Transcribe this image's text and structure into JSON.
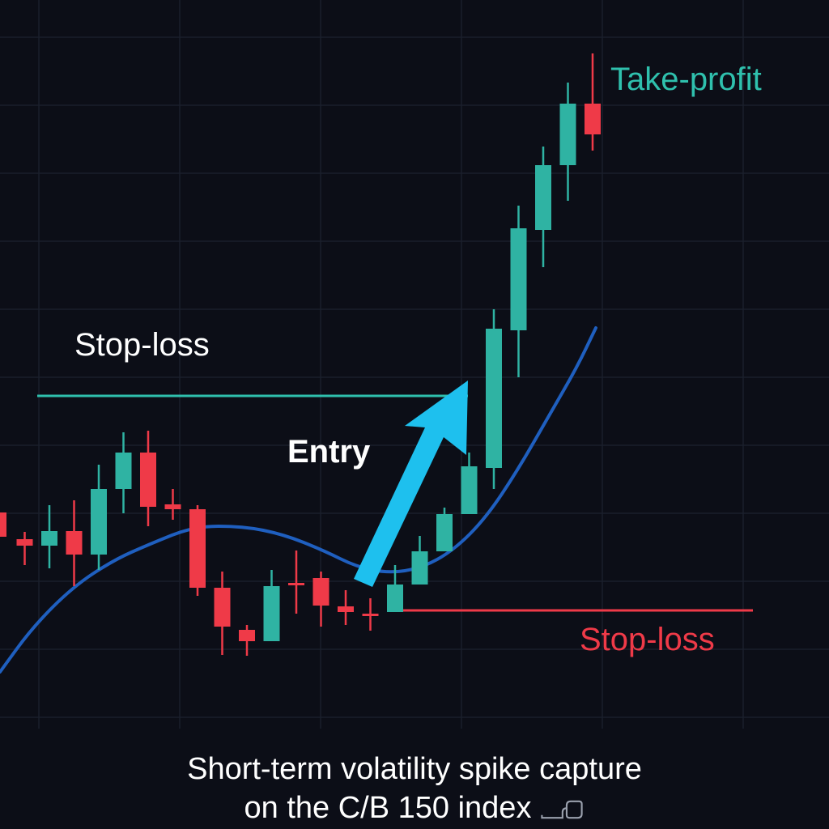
{
  "labels": {
    "take_profit": "Take-profit",
    "stop_loss_top": "Stop-loss",
    "entry": "Entry",
    "stop_loss_bottom": "Stop-loss"
  },
  "caption": {
    "line1": "Short-term volatility spike capture",
    "line2": "on the C/B 150 index"
  },
  "colors": {
    "background": "#0c0e17",
    "grid": "#1a1f2c",
    "up": "#2fb3a3",
    "down": "#ef3a48",
    "moving_average": "#1f5fbf",
    "arrow": "#1ec0ee",
    "take_profit_line": "#2fc0ad",
    "stop_loss_line": "#ef3a48",
    "text": "#ffffff"
  },
  "chart_data": {
    "type": "candlestick",
    "title": "",
    "xlabel": "",
    "ylabel": "",
    "grid": true,
    "ylim": [
      0,
      1024
    ],
    "candles": [
      {
        "open": 391,
        "close": 361,
        "high": 391,
        "low": 361
      },
      {
        "open": 358,
        "close": 350,
        "high": 367,
        "low": 326
      },
      {
        "open": 350,
        "close": 368,
        "high": 400,
        "low": 322
      },
      {
        "open": 368,
        "close": 339,
        "high": 406,
        "low": 300
      },
      {
        "open": 339,
        "close": 420,
        "high": 450,
        "low": 320
      },
      {
        "open": 420,
        "close": 465,
        "high": 490,
        "low": 390
      },
      {
        "open": 465,
        "close": 398,
        "high": 492,
        "low": 374
      },
      {
        "open": 401,
        "close": 395,
        "high": 420,
        "low": 382
      },
      {
        "open": 395,
        "close": 298,
        "high": 400,
        "low": 288
      },
      {
        "open": 298,
        "close": 250,
        "high": 318,
        "low": 215
      },
      {
        "open": 246,
        "close": 232,
        "high": 252,
        "low": 214
      },
      {
        "open": 232,
        "close": 300,
        "high": 320,
        "low": 232
      },
      {
        "open": 304,
        "close": 302,
        "high": 344,
        "low": 266
      },
      {
        "open": 310,
        "close": 276,
        "high": 318,
        "low": 250
      },
      {
        "open": 275,
        "close": 268,
        "high": 295,
        "low": 252
      },
      {
        "open": 266,
        "close": 264,
        "high": 285,
        "low": 245
      },
      {
        "open": 268,
        "close": 302,
        "high": 326,
        "low": 268
      },
      {
        "open": 302,
        "close": 343,
        "high": 362,
        "low": 302
      },
      {
        "open": 343,
        "close": 389,
        "high": 397,
        "low": 343
      },
      {
        "open": 389,
        "close": 448,
        "high": 465,
        "low": 389
      },
      {
        "open": 446,
        "close": 618,
        "high": 642,
        "low": 420
      },
      {
        "open": 616,
        "close": 742,
        "high": 770,
        "low": 558
      },
      {
        "open": 740,
        "close": 820,
        "high": 843,
        "low": 694
      },
      {
        "open": 820,
        "close": 896,
        "high": 922,
        "low": 776
      },
      {
        "open": 896,
        "close": 858,
        "high": 958,
        "low": 838
      }
    ],
    "levels": {
      "take_profit": 535,
      "stop_loss": 270
    }
  }
}
